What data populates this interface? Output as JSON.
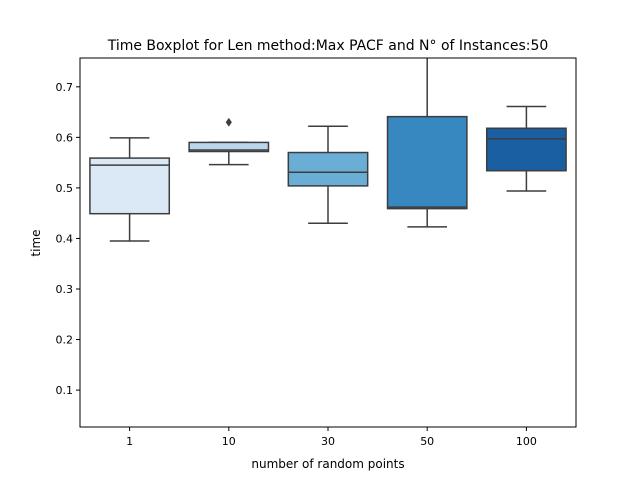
{
  "chart_data": {
    "type": "box",
    "title": "Time Boxplot for Len method:Max PACF and N° of Instances:50",
    "xlabel": "number of random points",
    "ylabel": "time",
    "ylim": [
      0.027,
      0.757
    ],
    "yticks": [
      "0.1",
      "0.2",
      "0.3",
      "0.4",
      "0.5",
      "0.6",
      "0.7"
    ],
    "grid": false,
    "categories": [
      "1",
      "10",
      "30",
      "50",
      "100"
    ],
    "boxes": [
      {
        "category": "1",
        "whisker_low": 0.395,
        "q1": 0.449,
        "median": 0.545,
        "q3": 0.559,
        "whisker_high": 0.599,
        "outliers": [],
        "color": "#dbe9f6"
      },
      {
        "category": "10",
        "whisker_low": 0.546,
        "q1": 0.572,
        "median": 0.575,
        "q3": 0.59,
        "whisker_high": 0.59,
        "outliers": [
          0.63
        ],
        "color": "#bad6eb"
      },
      {
        "category": "30",
        "whisker_low": 0.43,
        "q1": 0.504,
        "median": 0.531,
        "q3": 0.57,
        "whisker_high": 0.622,
        "outliers": [],
        "color": "#6aaed6"
      },
      {
        "category": "50",
        "whisker_low": 0.423,
        "q1": 0.459,
        "median": 0.462,
        "q3": 0.641,
        "whisker_high": 0.757,
        "outliers": [],
        "color": "#3787c0"
      },
      {
        "category": "100",
        "whisker_low": 0.494,
        "q1": 0.534,
        "median": 0.597,
        "q3": 0.618,
        "whisker_high": 0.661,
        "outliers": [],
        "color": "#1b5fa3"
      }
    ]
  }
}
